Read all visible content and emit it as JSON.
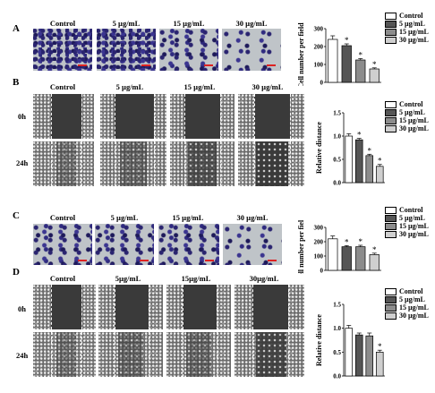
{
  "panels": [
    {
      "letter": "A",
      "type": "transwell"
    },
    {
      "letter": "B",
      "type": "wound"
    },
    {
      "letter": "C",
      "type": "transwell"
    },
    {
      "letter": "D",
      "type": "wound"
    }
  ],
  "columns_ab": [
    "Control",
    "5 µg/mL",
    "15 µg/mL",
    "30 µg/mL"
  ],
  "columns_c": [
    "Control",
    "5 µg/mL",
    "15 µg/mL",
    "30 µg/mL"
  ],
  "columns_d": [
    "Control",
    "5µg/mL",
    "15µg/mL",
    "30µg/mL"
  ],
  "rows": [
    "0h",
    "24h"
  ],
  "legend": [
    "Control",
    "5 µg/mL",
    "15 µg/mL",
    "30 µg/mL"
  ],
  "colors": {
    "control": "#ffffff",
    "c5": "#555555",
    "c15": "#8c8c8c",
    "c30": "#cfcfcf"
  },
  "chart_data": [
    {
      "type": "bar",
      "panel": "A",
      "categories": [
        "Control",
        "5 µg/mL",
        "15 µg/mL",
        "30 µg/mL"
      ],
      "values": [
        240,
        205,
        125,
        75
      ],
      "errors": [
        20,
        10,
        8,
        6
      ],
      "significant": [
        false,
        true,
        true,
        true
      ],
      "ylabel": "Cell number per field",
      "ylim": [
        0,
        300
      ],
      "yticks": [
        "0",
        "100",
        "200",
        "300"
      ]
    },
    {
      "type": "bar",
      "panel": "B",
      "categories": [
        "Control",
        "5 µg/mL",
        "15 µg/mL",
        "30 µg/mL"
      ],
      "values": [
        1.0,
        0.92,
        0.58,
        0.35
      ],
      "errors": [
        0.05,
        0.03,
        0.03,
        0.04
      ],
      "significant": [
        false,
        true,
        true,
        true
      ],
      "ylabel": "Relative distance",
      "ylim": [
        0,
        1.5
      ],
      "yticks": [
        "0.0",
        "0.5",
        "1.0",
        "1.5"
      ]
    },
    {
      "type": "bar",
      "panel": "C",
      "categories": [
        "Control",
        "5 µg/mL",
        "15 µg/mL",
        "30 µg/mL"
      ],
      "values": [
        220,
        165,
        165,
        110
      ],
      "errors": [
        20,
        8,
        10,
        10
      ],
      "significant": [
        false,
        true,
        true,
        true
      ],
      "ylabel": "Cell number per field",
      "ylim": [
        0,
        300
      ],
      "yticks": [
        "0",
        "100",
        "200",
        "300"
      ]
    },
    {
      "type": "bar",
      "panel": "D",
      "categories": [
        "Control",
        "5 µg/mL",
        "15 µg/mL",
        "30 µg/mL"
      ],
      "values": [
        1.0,
        0.86,
        0.84,
        0.5
      ],
      "errors": [
        0.06,
        0.04,
        0.06,
        0.04
      ],
      "significant": [
        false,
        false,
        false,
        true
      ],
      "ylabel": "Relative distance",
      "ylim": [
        0,
        1.5
      ],
      "yticks": [
        "0.0",
        "0.5",
        "1.0",
        "1.5"
      ]
    }
  ]
}
